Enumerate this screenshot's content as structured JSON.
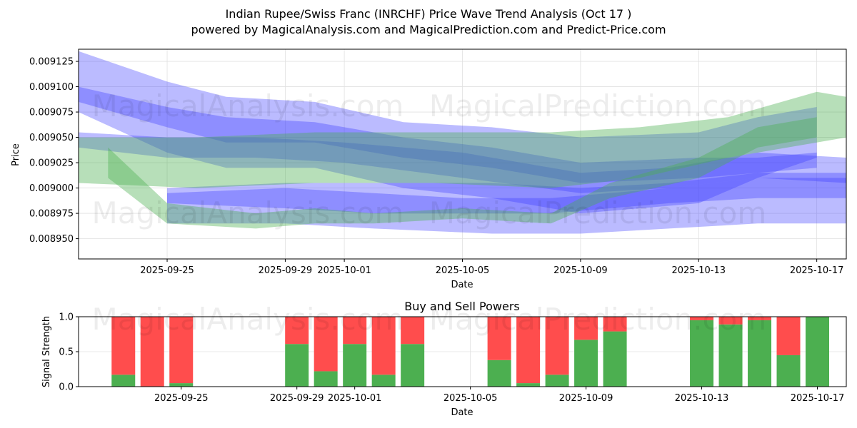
{
  "title_line1": "Indian Rupee/Swiss Franc (INRCHF) Price Wave Trend Analysis (Oct 17 )",
  "title_line2": "powered by MagicalAnalysis.com and MagicalPrediction.com and Predict-Price.com",
  "watermarks": [
    "MagicalAnalysis.com",
    "MagicalPrediction.com"
  ],
  "colors": {
    "buy": "#4caf50",
    "sell": "#ff4d4d",
    "blue_band": "#3b3bff",
    "green_band": "#4caf50",
    "grid": "#e0e0e0"
  },
  "chart_data": [
    {
      "type": "area",
      "title": "",
      "xlabel": "Date",
      "ylabel": "Price",
      "x_ticks": [
        "2025-09-25",
        "2025-09-29",
        "2025-10-01",
        "2025-10-05",
        "2025-10-09",
        "2025-10-13",
        "2025-10-17"
      ],
      "y_ticks": [
        "0.008950",
        "0.008975",
        "0.009000",
        "0.009025",
        "0.009050",
        "0.009075",
        "0.009100",
        "0.009125"
      ],
      "xlim": [
        "2025-09-22",
        "2025-10-18"
      ],
      "ylim": [
        0.00893,
        0.009137
      ],
      "grid": true,
      "series": [
        {
          "color": "blue",
          "x": [
            "2025-09-22",
            "2025-09-25",
            "2025-09-27",
            "2025-09-30",
            "2025-10-03",
            "2025-10-06",
            "2025-10-09",
            "2025-10-13",
            "2025-10-15",
            "2025-10-17"
          ],
          "upper": [
            0.009135,
            0.009105,
            0.00909,
            0.009085,
            0.009065,
            0.00906,
            0.00905,
            0.009055,
            0.00907,
            0.00908
          ],
          "lower": [
            0.009075,
            0.009035,
            0.00902,
            0.00902,
            0.009,
            0.00899,
            0.008975,
            0.008985,
            0.00901,
            0.00903
          ]
        },
        {
          "color": "blue",
          "x": [
            "2025-09-22",
            "2025-09-25",
            "2025-09-27",
            "2025-09-30",
            "2025-10-03",
            "2025-10-06",
            "2025-10-09",
            "2025-10-13",
            "2025-10-15",
            "2025-10-17"
          ],
          "upper": [
            0.0091,
            0.00908,
            0.00907,
            0.009065,
            0.00905,
            0.00904,
            0.009025,
            0.00903,
            0.00903,
            0.009035
          ],
          "lower": [
            0.009085,
            0.00906,
            0.009045,
            0.009045,
            0.00903,
            0.00902,
            0.009005,
            0.00901,
            0.009015,
            0.00902
          ]
        },
        {
          "color": "blue",
          "x": [
            "2025-09-22",
            "2025-09-25",
            "2025-09-28",
            "2025-10-01",
            "2025-10-05",
            "2025-10-09",
            "2025-10-12",
            "2025-10-15",
            "2025-10-18"
          ],
          "upper": [
            0.009055,
            0.00905,
            0.00905,
            0.009045,
            0.009035,
            0.009015,
            0.00902,
            0.009035,
            0.00903
          ],
          "lower": [
            0.00904,
            0.00903,
            0.00903,
            0.009025,
            0.00901,
            0.008995,
            0.009,
            0.00901,
            0.009005
          ]
        },
        {
          "color": "blue",
          "x": [
            "2025-09-25",
            "2025-09-29",
            "2025-10-02",
            "2025-10-05",
            "2025-10-08",
            "2025-10-12",
            "2025-10-15",
            "2025-10-18"
          ],
          "upper": [
            0.008995,
            0.009,
            0.008995,
            0.00899,
            0.00899,
            0.009,
            0.00901,
            0.00901
          ],
          "lower": [
            0.008985,
            0.00898,
            0.008975,
            0.008975,
            0.008975,
            0.008985,
            0.00899,
            0.00899
          ]
        },
        {
          "color": "blue",
          "x": [
            "2025-09-25",
            "2025-09-29",
            "2025-10-02",
            "2025-10-06",
            "2025-10-09",
            "2025-10-12",
            "2025-10-15",
            "2025-10-18"
          ],
          "upper": [
            0.009,
            0.009005,
            0.009005,
            0.009005,
            0.009,
            0.009005,
            0.009015,
            0.009015
          ],
          "lower": [
            0.008965,
            0.008965,
            0.00896,
            0.008955,
            0.008955,
            0.00896,
            0.008965,
            0.008965
          ]
        },
        {
          "color": "green",
          "x": [
            "2025-09-22",
            "2025-09-26",
            "2025-09-30",
            "2025-10-04",
            "2025-10-08",
            "2025-10-11",
            "2025-10-14",
            "2025-10-17",
            "2025-10-18"
          ],
          "upper": [
            0.00905,
            0.00905,
            0.009055,
            0.009055,
            0.009055,
            0.00906,
            0.00907,
            0.009095,
            0.00909
          ],
          "lower": [
            0.009005,
            0.009,
            0.009005,
            0.009005,
            0.009,
            0.00901,
            0.00903,
            0.009045,
            0.00905
          ]
        },
        {
          "color": "green",
          "x": [
            "2025-09-23",
            "2025-09-25",
            "2025-09-28",
            "2025-09-30",
            "2025-10-02",
            "2025-10-05",
            "2025-10-08",
            "2025-10-10",
            "2025-10-13",
            "2025-10-15",
            "2025-10-17"
          ],
          "upper": [
            0.00904,
            0.008985,
            0.008975,
            0.00898,
            0.008975,
            0.00898,
            0.008975,
            0.009005,
            0.00903,
            0.00906,
            0.00907
          ],
          "lower": [
            0.00901,
            0.008965,
            0.00896,
            0.008965,
            0.008965,
            0.00897,
            0.008965,
            0.00899,
            0.00901,
            0.00904,
            0.00905
          ]
        }
      ]
    },
    {
      "type": "bar",
      "title": "Buy and Sell Powers",
      "xlabel": "Date",
      "ylabel": "Signal Strength",
      "y_ticks": [
        "0.0",
        "0.5",
        "1.0"
      ],
      "ylim": [
        0,
        1
      ],
      "grid": true,
      "x_ticks": [
        "2025-09-25",
        "2025-09-29",
        "2025-10-01",
        "2025-10-05",
        "2025-10-09",
        "2025-10-13",
        "2025-10-17"
      ],
      "categories": [
        "2025-09-23",
        "2025-09-24",
        "2025-09-25",
        "2025-09-29",
        "2025-09-30",
        "2025-10-01",
        "2025-10-02",
        "2025-10-03",
        "2025-10-06",
        "2025-10-07",
        "2025-10-08",
        "2025-10-09",
        "2025-10-10",
        "2025-10-13",
        "2025-10-14",
        "2025-10-15",
        "2025-10-16",
        "2025-10-17"
      ],
      "series": [
        {
          "values": [
            0.17,
            0.0,
            0.05,
            0.61,
            0.22,
            0.61,
            0.17,
            0.61,
            0.38,
            0.05,
            0.17,
            0.67,
            0.79,
            0.95,
            0.89,
            0.95,
            0.45,
            1.0
          ]
        },
        {
          "values": [
            0.83,
            1.0,
            0.95,
            0.39,
            0.78,
            0.39,
            0.83,
            0.39,
            0.62,
            0.95,
            0.83,
            0.33,
            0.21,
            0.05,
            0.11,
            0.05,
            0.55,
            0.0
          ]
        }
      ]
    }
  ]
}
